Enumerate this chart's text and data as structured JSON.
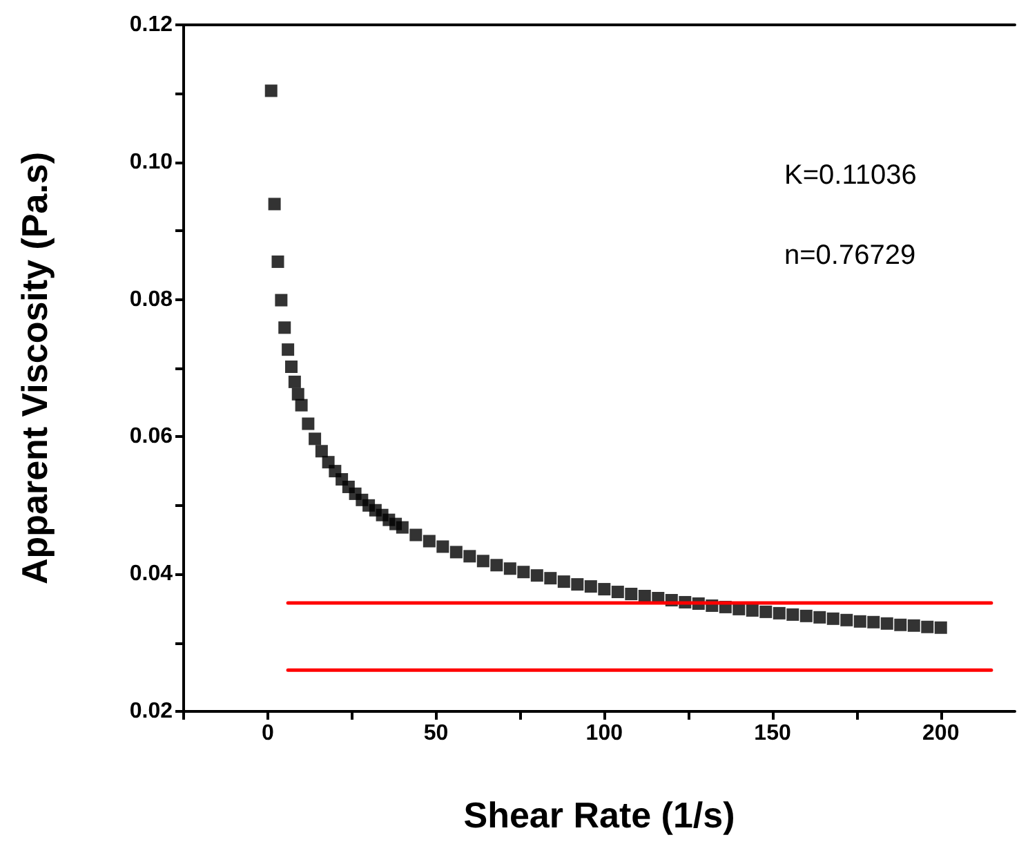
{
  "chart_data": {
    "type": "scatter",
    "xlabel": "Shear Rate (1/s)",
    "ylabel": "Apparent Viscosity (Pa.s)",
    "marker": "square",
    "grid": false,
    "xlim": [
      -25,
      222
    ],
    "xticks": [
      {
        "value": -25,
        "label": null
      },
      0,
      {
        "value": 25,
        "label": null
      },
      50,
      {
        "value": 75,
        "label": null
      },
      100,
      {
        "value": 125,
        "label": null
      },
      150,
      {
        "value": 175,
        "label": null
      },
      200
    ],
    "ylim": [
      0.02,
      0.12
    ],
    "yticks": [
      {
        "value": 0.02,
        "label": "0.02"
      },
      {
        "value": 0.03,
        "label": null
      },
      {
        "value": 0.04,
        "label": "0.04"
      },
      {
        "value": 0.05,
        "label": null
      },
      {
        "value": 0.06,
        "label": "0.06"
      },
      {
        "value": 0.07,
        "label": null
      },
      {
        "value": 0.08,
        "label": "0.08"
      },
      {
        "value": 0.09,
        "label": null
      },
      {
        "value": 0.1,
        "label": "0.10"
      },
      {
        "value": 0.11,
        "label": null
      },
      {
        "value": 0.12,
        "label": "0.12"
      }
    ],
    "annotations": [
      "K=0.11036",
      "n=0.76729"
    ],
    "series": [
      {
        "color": "#000000",
        "x": [
          1,
          2,
          3,
          4,
          5,
          6,
          7,
          8,
          9,
          10,
          12,
          14,
          16,
          18,
          20,
          22,
          24,
          26,
          28,
          30,
          32,
          34,
          36,
          38,
          40,
          44,
          48,
          52,
          56,
          60,
          64,
          68,
          72,
          76,
          80,
          84,
          88,
          92,
          96,
          100,
          104,
          108,
          112,
          116,
          120,
          124,
          128,
          132,
          136,
          140,
          144,
          148,
          152,
          156,
          160,
          164,
          168,
          172,
          176,
          180,
          184,
          188,
          192,
          196,
          200
        ],
        "values": [
          0.1104,
          0.0939,
          0.0855,
          0.0799,
          0.0759,
          0.0727,
          0.0702,
          0.068,
          0.0662,
          0.0646,
          0.0619,
          0.0597,
          0.0579,
          0.0563,
          0.055,
          0.0538,
          0.0527,
          0.0517,
          0.0508,
          0.05,
          0.0493,
          0.0486,
          0.0479,
          0.0473,
          0.0468,
          0.0457,
          0.0448,
          0.044,
          0.0432,
          0.0426,
          0.0419,
          0.0413,
          0.0408,
          0.0403,
          0.0398,
          0.0394,
          0.0389,
          0.0385,
          0.0382,
          0.0378,
          0.0374,
          0.0371,
          0.0368,
          0.0365,
          0.0362,
          0.0359,
          0.0357,
          0.0354,
          0.0352,
          0.0349,
          0.0347,
          0.0345,
          0.0343,
          0.0341,
          0.0339,
          0.0337,
          0.0335,
          0.0333,
          0.0331,
          0.033,
          0.0328,
          0.0326,
          0.0325,
          0.0323,
          0.0322
        ]
      },
      {
        "type": "line",
        "color": "#ff0000",
        "marker": "none",
        "line_style": "solid",
        "x": [
          6,
          215
        ],
        "values": [
          0.0358,
          0.0358
        ]
      },
      {
        "type": "line",
        "color": "#ff0000",
        "marker": "none",
        "line_style": "solid",
        "x": [
          6,
          215
        ],
        "values": [
          0.026,
          0.026
        ]
      }
    ]
  }
}
